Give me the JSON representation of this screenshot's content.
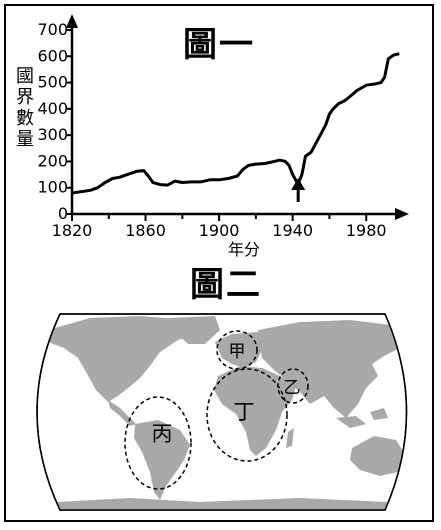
{
  "chart_data": {
    "type": "line",
    "title": "圖一",
    "ylabel": "國界數量",
    "xlabel": "年分",
    "ylim": [
      0,
      700
    ],
    "xlim": [
      1820,
      2000
    ],
    "yticks": [
      "0",
      "100",
      "200",
      "300",
      "400",
      "500",
      "600",
      "700"
    ],
    "xticks": [
      "1820",
      "1860",
      "1900",
      "1940",
      "1980"
    ],
    "annotations": [
      {
        "type": "arrow",
        "x": 1943,
        "points_to": "local minimum"
      }
    ],
    "grid": false,
    "series": [
      {
        "x": [
          1820,
          1825,
          1830,
          1834,
          1838,
          1842,
          1846,
          1850,
          1855,
          1859,
          1862,
          1864,
          1868,
          1872,
          1876,
          1880,
          1885,
          1890,
          1895,
          1900,
          1905,
          1910,
          1913,
          1916,
          1920,
          1925,
          1930,
          1933,
          1936,
          1938,
          1940,
          1942,
          1943,
          1945,
          1947,
          1950,
          1955,
          1958,
          1960,
          1962,
          1965,
          1968,
          1970,
          1975,
          1980,
          1985,
          1988,
          1990,
          1992,
          1995,
          1998
        ],
        "y": [
          80,
          85,
          90,
          100,
          120,
          135,
          140,
          150,
          162,
          165,
          140,
          120,
          112,
          110,
          125,
          120,
          122,
          122,
          130,
          130,
          135,
          145,
          170,
          185,
          190,
          192,
          200,
          205,
          200,
          185,
          150,
          125,
          115,
          150,
          220,
          235,
          300,
          340,
          380,
          400,
          420,
          430,
          440,
          470,
          490,
          495,
          500,
          520,
          590,
          605,
          610
        ]
      }
    ]
  },
  "figure2": {
    "title": "圖二",
    "regions": [
      {
        "label": "甲"
      },
      {
        "label": "乙"
      },
      {
        "label": "丙"
      },
      {
        "label": "丁"
      }
    ]
  }
}
